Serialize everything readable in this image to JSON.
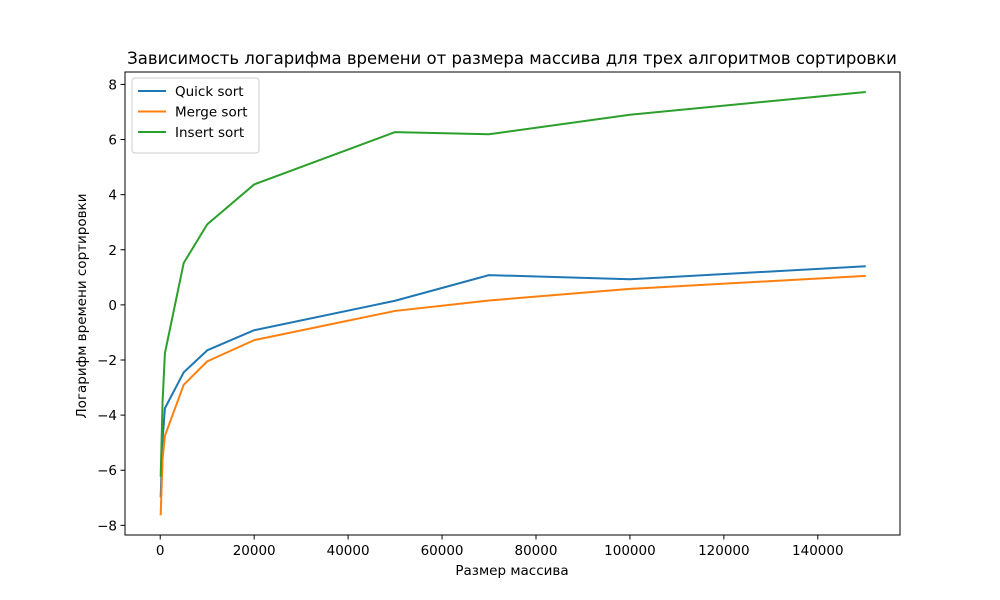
{
  "chart_data": {
    "type": "line",
    "title": "Зависимость логарифма времени от размера массива для трех алгоритмов сортировки",
    "xlabel": "Размер массива",
    "ylabel": "Логарифм времени сортировки",
    "xlim": [
      -7500,
      157500
    ],
    "ylim": [
      -8.35,
      8.45
    ],
    "x_ticks": [
      0,
      20000,
      40000,
      60000,
      80000,
      100000,
      120000,
      140000
    ],
    "y_ticks": [
      -8,
      -6,
      -4,
      -2,
      0,
      2,
      4,
      6,
      8
    ],
    "x_tick_labels": [
      "0",
      "20000",
      "40000",
      "60000",
      "80000",
      "100000",
      "120000",
      "140000"
    ],
    "y_tick_labels": [
      "−8",
      "−6",
      "−4",
      "−2",
      "0",
      "2",
      "4",
      "6",
      "8"
    ],
    "legend_position": "top-left",
    "grid": false,
    "x": [
      100,
      500,
      1000,
      5000,
      10000,
      20000,
      50000,
      70000,
      100000,
      150000
    ],
    "series": [
      {
        "name": "Quick sort",
        "color": "#1f77b4",
        "values": [
          -6.95,
          -4.9,
          -3.75,
          -2.45,
          -1.65,
          -0.92,
          0.15,
          1.08,
          0.93,
          1.4
        ]
      },
      {
        "name": "Merge sort",
        "color": "#ff7f0e",
        "values": [
          -7.6,
          -5.6,
          -4.75,
          -2.9,
          -2.05,
          -1.28,
          -0.22,
          0.16,
          0.58,
          1.05
        ]
      },
      {
        "name": "Insert sort",
        "color": "#2ca02c",
        "values": [
          -6.2,
          -3.5,
          -1.75,
          1.52,
          2.92,
          4.37,
          6.27,
          6.19,
          6.9,
          7.72
        ]
      }
    ]
  }
}
